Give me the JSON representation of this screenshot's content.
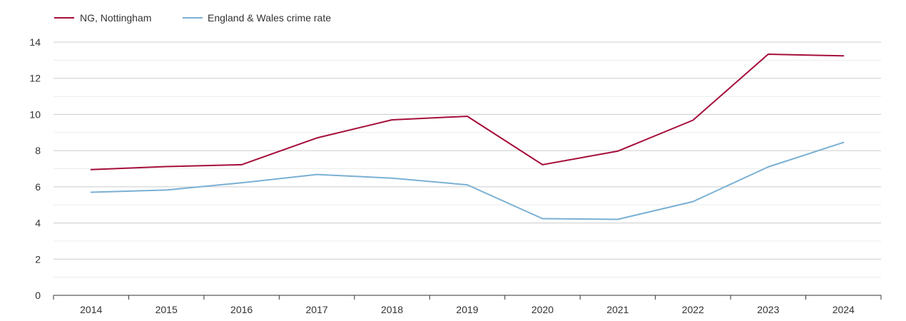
{
  "chart_data": {
    "type": "line",
    "title": "",
    "xlabel": "",
    "ylabel": "",
    "x": [
      "2014",
      "2015",
      "2016",
      "2017",
      "2018",
      "2019",
      "2020",
      "2021",
      "2022",
      "2023",
      "2024"
    ],
    "ylim": [
      0,
      14
    ],
    "y_ticks": [
      "0",
      "2",
      "4",
      "6",
      "8",
      "10",
      "12",
      "14"
    ],
    "grid": true,
    "legend_position": "top-left",
    "series": [
      {
        "name": "NG, Nottingham",
        "color": "#a50e3a",
        "values": [
          6.95,
          7.12,
          7.22,
          8.7,
          9.7,
          9.9,
          7.22,
          7.97,
          9.68,
          13.33,
          13.24
        ]
      },
      {
        "name": "England & Wales crime rate",
        "color": "#7ab0d4",
        "values": [
          5.7,
          5.82,
          6.22,
          6.68,
          6.48,
          6.11,
          4.24,
          4.2,
          5.18,
          7.1,
          8.45
        ]
      }
    ]
  }
}
